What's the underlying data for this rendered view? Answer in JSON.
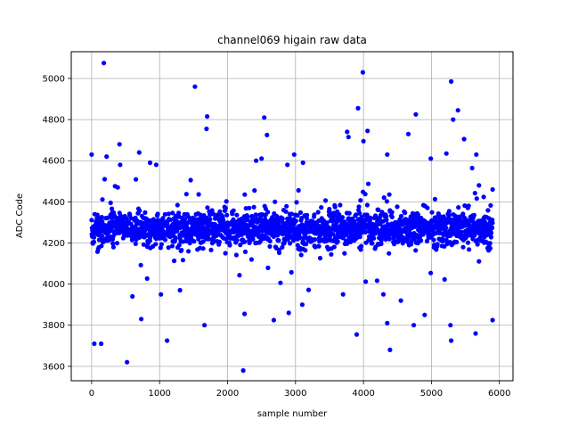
{
  "chart_data": {
    "type": "scatter",
    "title": "channel069 higain raw data",
    "xlabel": "sample number",
    "ylabel": "ADC Code",
    "xlim": [
      -300,
      6200
    ],
    "ylim": [
      3530,
      5130
    ],
    "xticks": [
      0,
      1000,
      2000,
      3000,
      4000,
      5000,
      6000
    ],
    "yticks": [
      3600,
      3800,
      4000,
      4200,
      4400,
      4600,
      4800,
      5000
    ],
    "grid": true,
    "color": "#0000ff",
    "series": [
      {
        "n_samples": 5900,
        "baseline": 4270,
        "outliers": [
          {
            "x": 180,
            "y": 5075
          },
          {
            "x": 1520,
            "y": 4960
          },
          {
            "x": 1700,
            "y": 4815
          },
          {
            "x": 1690,
            "y": 4755
          },
          {
            "x": 2540,
            "y": 4810
          },
          {
            "x": 2580,
            "y": 4725
          },
          {
            "x": 3990,
            "y": 5030
          },
          {
            "x": 3920,
            "y": 4855
          },
          {
            "x": 4770,
            "y": 4825
          },
          {
            "x": 5290,
            "y": 4985
          },
          {
            "x": 5390,
            "y": 4845
          },
          {
            "x": 5320,
            "y": 4800
          },
          {
            "x": 0,
            "y": 4630
          },
          {
            "x": 220,
            "y": 4620
          },
          {
            "x": 410,
            "y": 4680
          },
          {
            "x": 420,
            "y": 4580
          },
          {
            "x": 700,
            "y": 4640
          },
          {
            "x": 860,
            "y": 4590
          },
          {
            "x": 950,
            "y": 4580
          },
          {
            "x": 2420,
            "y": 4600
          },
          {
            "x": 2500,
            "y": 4610
          },
          {
            "x": 2980,
            "y": 4630
          },
          {
            "x": 2880,
            "y": 4580
          },
          {
            "x": 3110,
            "y": 4590
          },
          {
            "x": 3760,
            "y": 4740
          },
          {
            "x": 3780,
            "y": 4715
          },
          {
            "x": 4000,
            "y": 4695
          },
          {
            "x": 4060,
            "y": 4745
          },
          {
            "x": 4350,
            "y": 4630
          },
          {
            "x": 4660,
            "y": 4730
          },
          {
            "x": 4990,
            "y": 4610
          },
          {
            "x": 5220,
            "y": 4635
          },
          {
            "x": 5480,
            "y": 4705
          },
          {
            "x": 5660,
            "y": 4630
          },
          {
            "x": 5700,
            "y": 4480
          },
          {
            "x": 5900,
            "y": 4460
          },
          {
            "x": 40,
            "y": 3710
          },
          {
            "x": 140,
            "y": 3710
          },
          {
            "x": 520,
            "y": 3620
          },
          {
            "x": 730,
            "y": 3830
          },
          {
            "x": 1110,
            "y": 3725
          },
          {
            "x": 1660,
            "y": 3800
          },
          {
            "x": 2230,
            "y": 3580
          },
          {
            "x": 2250,
            "y": 3855
          },
          {
            "x": 2680,
            "y": 3825
          },
          {
            "x": 2900,
            "y": 3860
          },
          {
            "x": 3900,
            "y": 3755
          },
          {
            "x": 4390,
            "y": 3680
          },
          {
            "x": 4350,
            "y": 3810
          },
          {
            "x": 4740,
            "y": 3800
          },
          {
            "x": 4900,
            "y": 3850
          },
          {
            "x": 5280,
            "y": 3800
          },
          {
            "x": 5290,
            "y": 3725
          },
          {
            "x": 5650,
            "y": 3760
          },
          {
            "x": 5900,
            "y": 3825
          },
          {
            "x": 600,
            "y": 3940
          },
          {
            "x": 1300,
            "y": 3970
          },
          {
            "x": 3100,
            "y": 3900
          },
          {
            "x": 3700,
            "y": 3950
          },
          {
            "x": 4550,
            "y": 3920
          }
        ]
      }
    ]
  }
}
